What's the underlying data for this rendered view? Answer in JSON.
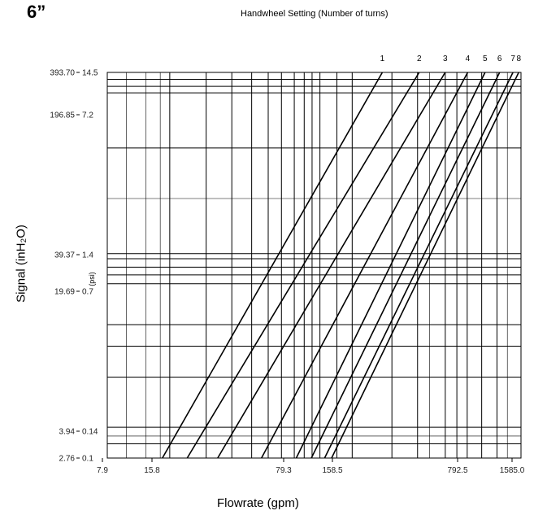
{
  "header": {
    "size_label": "6”"
  },
  "chart_data": {
    "type": "line",
    "title": "Handwheel Setting (Number of turns)",
    "xlabel": "Flowrate (gpm)",
    "ylabel": "Signal (inH₂O)",
    "ylabel2": "(psi)",
    "x_scale": "log",
    "y_scale": "log",
    "xlim": [
      7.9,
      1585.0
    ],
    "ylim_inh2o": [
      2.76,
      393.7
    ],
    "ylim_psi": [
      0.1,
      14.5
    ],
    "x_ticks": [
      "7.9",
      "15.8",
      "79.3",
      "158.5",
      "792.5",
      "1585.0"
    ],
    "y_ticks_inh2o": [
      "393.70",
      "196.85",
      "39.37",
      "19.69",
      "3.94",
      "2.76"
    ],
    "y_ticks_psi": [
      "14.5",
      "7.2",
      "1.4",
      "0.7",
      "0.14",
      "0.1"
    ],
    "grid": true,
    "series": [
      {
        "name": "1",
        "x": [
          16.0,
          268.0
        ],
        "y": [
          2.76,
          393.7
        ]
      },
      {
        "name": "2",
        "x": [
          22.0,
          430.0
        ],
        "y": [
          2.76,
          393.7
        ]
      },
      {
        "name": "3",
        "x": [
          32.5,
          600.0
        ],
        "y": [
          2.76,
          393.7
        ]
      },
      {
        "name": "4",
        "x": [
          57.0,
          800.0
        ],
        "y": [
          2.76,
          393.7
        ]
      },
      {
        "name": "5",
        "x": [
          89.0,
          1000.0
        ],
        "y": [
          2.76,
          393.7
        ]
      },
      {
        "name": "6",
        "x": [
          108.0,
          1205.0
        ],
        "y": [
          2.76,
          393.7
        ]
      },
      {
        "name": "7",
        "x": [
          128.0,
          1430.0
        ],
        "y": [
          2.76,
          393.7
        ]
      },
      {
        "name": "8",
        "x": [
          140.0,
          1540.0
        ],
        "y": [
          2.76,
          393.7
        ]
      }
    ]
  }
}
